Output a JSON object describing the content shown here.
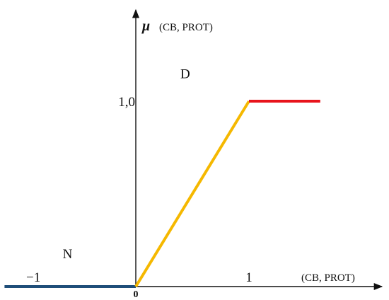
{
  "chart_data": {
    "type": "line",
    "title": "",
    "ylabel_symbol": "μ",
    "ylabel_text": "(CB, PROT)",
    "xlabel": "(CB, PROT)",
    "x_ticks": [
      {
        "value": -1,
        "label": "−1"
      },
      {
        "value": 0,
        "label": "0"
      },
      {
        "value": 1,
        "label": "1"
      }
    ],
    "y_ticks": [
      {
        "value": 1.0,
        "label": "1,0"
      }
    ],
    "xlim": [
      -1.16,
      1.63
    ],
    "ylim": [
      0,
      1.46
    ],
    "annotations": [
      {
        "text": "D",
        "x": 0.45,
        "y": 1.15
      },
      {
        "text": "N",
        "x": -0.59,
        "y": 0.18
      }
    ],
    "series": [
      {
        "color": "#1f4e79",
        "x": [
          -1.16,
          0
        ],
        "y": [
          0,
          0
        ]
      },
      {
        "color": "#f5b800",
        "x": [
          0,
          1
        ],
        "y": [
          0,
          1
        ]
      },
      {
        "color": "#e8141c",
        "x": [
          1,
          1.63
        ],
        "y": [
          1,
          1
        ]
      }
    ],
    "grid": false,
    "legend": "none"
  }
}
